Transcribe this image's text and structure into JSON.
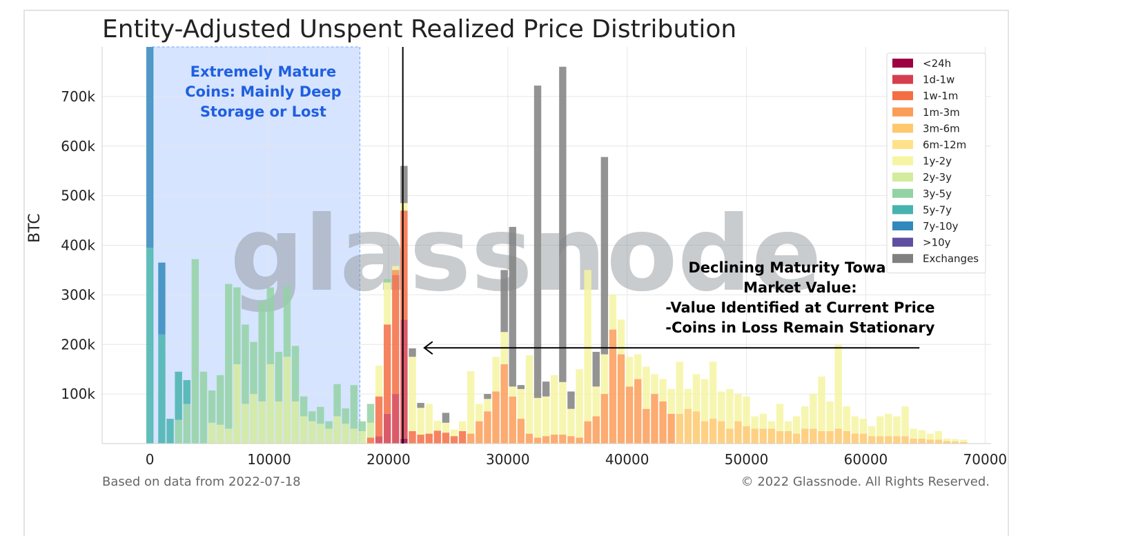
{
  "chart_data": {
    "type": "bar",
    "title": "Entity-Adjusted Unspent Realized Price Distribution",
    "xlabel": "",
    "ylabel": "BTC",
    "xlim": [
      -4000,
      70500
    ],
    "ylim": [
      0,
      800000
    ],
    "xticks": [
      0,
      10000,
      20000,
      30000,
      40000,
      50000,
      60000,
      70000
    ],
    "xtick_labels": [
      "0",
      "10000",
      "20000",
      "30000",
      "40000",
      "50000",
      "60000",
      "70000"
    ],
    "yticks": [
      100000,
      200000,
      300000,
      400000,
      500000,
      600000,
      700000
    ],
    "ytick_labels": [
      "100k",
      "200k",
      "300k",
      "400k",
      "500k",
      "600k",
      "700k"
    ],
    "grid": true,
    "legend_position": "top-right",
    "current_price": 21200,
    "bin_width": 700,
    "series": [
      {
        "name": "<24h",
        "color": "#9e0142"
      },
      {
        "name": "1d-1w",
        "color": "#d53e4f"
      },
      {
        "name": "1w-1m",
        "color": "#f46d43"
      },
      {
        "name": "1m-3m",
        "color": "#fb9c58"
      },
      {
        "name": "3m-6m",
        "color": "#fdc86e"
      },
      {
        "name": "6m-12m",
        "color": "#fee18a"
      },
      {
        "name": "1y-2y",
        "color": "#f5f5a2"
      },
      {
        "name": "2y-3y",
        "color": "#d2eb9c"
      },
      {
        "name": "3y-5y",
        "color": "#93d2a4"
      },
      {
        "name": "5y-7y",
        "color": "#46b3ae"
      },
      {
        "name": "7y-10y",
        "color": "#3288bd"
      },
      {
        "name": ">10y",
        "color": "#5e4fa2"
      },
      {
        "name": "Exchanges",
        "color": "#808080"
      }
    ],
    "bins": [
      {
        "x": 0,
        "stack": {
          "5y-7y": 395000,
          "7y-10y": 405000
        }
      },
      {
        "x": 1000,
        "stack": {
          "5y-7y": 220000,
          "7y-10y": 145000
        }
      },
      {
        "x": 1700,
        "stack": {
          "5y-7y": 50000
        }
      },
      {
        "x": 2400,
        "stack": {
          "3y-5y": 48000,
          "5y-7y": 97000
        }
      },
      {
        "x": 3100,
        "stack": {
          "3y-5y": 80000,
          "5y-7y": 48000
        }
      },
      {
        "x": 3800,
        "stack": {
          "3y-5y": 372000
        }
      },
      {
        "x": 4500,
        "stack": {
          "3y-5y": 145000
        }
      },
      {
        "x": 5200,
        "stack": {
          "2y-3y": 42000,
          "3y-5y": 65000
        }
      },
      {
        "x": 5900,
        "stack": {
          "2y-3y": 38000,
          "3y-5y": 100000
        }
      },
      {
        "x": 6600,
        "stack": {
          "2y-3y": 30000,
          "3y-5y": 292000
        }
      },
      {
        "x": 7300,
        "stack": {
          "2y-3y": 160000,
          "3y-5y": 155000
        }
      },
      {
        "x": 8000,
        "stack": {
          "2y-3y": 80000,
          "3y-5y": 160000
        }
      },
      {
        "x": 8700,
        "stack": {
          "2y-3y": 100000,
          "3y-5y": 105000
        }
      },
      {
        "x": 9400,
        "stack": {
          "2y-3y": 85000,
          "3y-5y": 202000
        }
      },
      {
        "x": 10100,
        "stack": {
          "2y-3y": 160000,
          "3y-5y": 155000
        }
      },
      {
        "x": 10800,
        "stack": {
          "2y-3y": 85000,
          "3y-5y": 100000
        }
      },
      {
        "x": 11500,
        "stack": {
          "2y-3y": 175000,
          "3y-5y": 142000
        }
      },
      {
        "x": 12200,
        "stack": {
          "2y-3y": 85000,
          "3y-5y": 112000
        }
      },
      {
        "x": 12900,
        "stack": {
          "2y-3y": 55000,
          "3y-5y": 40000
        }
      },
      {
        "x": 13600,
        "stack": {
          "2y-3y": 45000,
          "3y-5y": 20000
        }
      },
      {
        "x": 14300,
        "stack": {
          "2y-3y": 40000,
          "3y-5y": 34000
        }
      },
      {
        "x": 15000,
        "stack": {
          "2y-3y": 30000,
          "3y-5y": 15000
        }
      },
      {
        "x": 15700,
        "stack": {
          "2y-3y": 55000,
          "3y-5y": 65000
        }
      },
      {
        "x": 16400,
        "stack": {
          "2y-3y": 40000,
          "3y-5y": 31000
        }
      },
      {
        "x": 17100,
        "stack": {
          "2y-3y": 30000,
          "3y-5y": 88000
        }
      },
      {
        "x": 17800,
        "stack": {
          "2y-3y": 25000,
          "3y-5y": 20000
        }
      },
      {
        "x": 18500,
        "stack": {
          "1w-1m": 12000,
          "2y-3y": 30000,
          "3y-5y": 38000
        }
      },
      {
        "x": 19200,
        "stack": {
          "1d-1w": 15000,
          "1w-1m": 80000,
          "1y-2y": 62000
        }
      },
      {
        "x": 19900,
        "stack": {
          "1d-1w": 60000,
          "1w-1m": 180000,
          "1y-2y": 85000,
          "3y-5y": 7000
        }
      },
      {
        "x": 20600,
        "stack": {
          "1d-1w": 100000,
          "1w-1m": 240000,
          "1m-3m": 10000,
          "1y-2y": 8000
        }
      },
      {
        "x": 21300,
        "stack": {
          "<24h": 10000,
          "1d-1w": 240000,
          "1w-1m": 220000,
          "1y-2y": 15000,
          "Exchanges": 75000
        }
      },
      {
        "x": 22000,
        "stack": {
          "1w-1m": 25000,
          "1y-2y": 150000,
          "Exchanges": 17000
        }
      },
      {
        "x": 22700,
        "stack": {
          "1w-1m": 18000,
          "1y-2y": 54000,
          "Exchanges": 10000
        }
      },
      {
        "x": 23400,
        "stack": {
          "1w-1m": 20000,
          "1y-2y": 60000
        }
      },
      {
        "x": 24100,
        "stack": {
          "1w-1m": 26000,
          "1y-2y": 20000
        }
      },
      {
        "x": 24800,
        "stack": {
          "1w-1m": 22000,
          "1y-2y": 20000,
          "Exchanges": 20000
        }
      },
      {
        "x": 25500,
        "stack": {
          "1w-1m": 15000,
          "1y-2y": 13000
        }
      },
      {
        "x": 26200,
        "stack": {
          "1w-1m": 25000,
          "1y-2y": 20000
        }
      },
      {
        "x": 26900,
        "stack": {
          "1m-3m": 20000,
          "1y-2y": 126000
        }
      },
      {
        "x": 27600,
        "stack": {
          "1m-3m": 45000,
          "1y-2y": 35000
        }
      },
      {
        "x": 28300,
        "stack": {
          "1m-3m": 65000,
          "1y-2y": 25000,
          "Exchanges": 10000
        }
      },
      {
        "x": 29000,
        "stack": {
          "1m-3m": 105000,
          "1y-2y": 70000
        }
      },
      {
        "x": 29700,
        "stack": {
          "1m-3m": 160000,
          "1y-2y": 65000,
          "Exchanges": 125000
        }
      },
      {
        "x": 30400,
        "stack": {
          "1m-3m": 95000,
          "1y-2y": 20000,
          "Exchanges": 322000
        }
      },
      {
        "x": 31100,
        "stack": {
          "1m-3m": 50000,
          "1y-2y": 60000,
          "Exchanges": 8000
        }
      },
      {
        "x": 31800,
        "stack": {
          "1m-3m": 20000,
          "1y-2y": 158000
        }
      },
      {
        "x": 32500,
        "stack": {
          "1m-3m": 12000,
          "1y-2y": 80000,
          "Exchanges": 630000
        }
      },
      {
        "x": 33200,
        "stack": {
          "1m-3m": 15000,
          "1y-2y": 80000,
          "Exchanges": 30000
        }
      },
      {
        "x": 33900,
        "stack": {
          "1m-3m": 18000,
          "1y-2y": 120000
        }
      },
      {
        "x": 34600,
        "stack": {
          "1m-3m": 18000,
          "1y-2y": 106000,
          "Exchanges": 636000
        }
      },
      {
        "x": 35300,
        "stack": {
          "1m-3m": 15000,
          "1y-2y": 55000,
          "Exchanges": 35000
        }
      },
      {
        "x": 36000,
        "stack": {
          "1m-3m": 12000,
          "1y-2y": 138000
        }
      },
      {
        "x": 36700,
        "stack": {
          "1m-3m": 45000,
          "1y-2y": 305000
        }
      },
      {
        "x": 37400,
        "stack": {
          "1m-3m": 55000,
          "1y-2y": 60000,
          "Exchanges": 70000
        }
      },
      {
        "x": 38100,
        "stack": {
          "1m-3m": 100000,
          "1y-2y": 80000,
          "Exchanges": 398000
        }
      },
      {
        "x": 38800,
        "stack": {
          "1m-3m": 230000,
          "1y-2y": 70000
        }
      },
      {
        "x": 39500,
        "stack": {
          "1m-3m": 180000,
          "1y-2y": 70000
        }
      },
      {
        "x": 40200,
        "stack": {
          "1m-3m": 115000,
          "1y-2y": 60000
        }
      },
      {
        "x": 40900,
        "stack": {
          "1m-3m": 130000,
          "1y-2y": 50000
        }
      },
      {
        "x": 41600,
        "stack": {
          "1m-3m": 70000,
          "1y-2y": 85000
        }
      },
      {
        "x": 42300,
        "stack": {
          "1m-3m": 100000,
          "1y-2y": 40000
        }
      },
      {
        "x": 43000,
        "stack": {
          "1m-3m": 85000,
          "1y-2y": 45000
        }
      },
      {
        "x": 43700,
        "stack": {
          "1m-3m": 60000,
          "1y-2y": 50000
        }
      },
      {
        "x": 44400,
        "stack": {
          "3m-6m": 60000,
          "1y-2y": 105000
        }
      },
      {
        "x": 45100,
        "stack": {
          "3m-6m": 70000,
          "1y-2y": 40000
        }
      },
      {
        "x": 45800,
        "stack": {
          "3m-6m": 65000,
          "1y-2y": 75000
        }
      },
      {
        "x": 46500,
        "stack": {
          "3m-6m": 45000,
          "1y-2y": 85000
        }
      },
      {
        "x": 47200,
        "stack": {
          "3m-6m": 50000,
          "1y-2y": 115000
        }
      },
      {
        "x": 47900,
        "stack": {
          "3m-6m": 45000,
          "1y-2y": 60000
        }
      },
      {
        "x": 48600,
        "stack": {
          "3m-6m": 30000,
          "1y-2y": 80000
        }
      },
      {
        "x": 49300,
        "stack": {
          "3m-6m": 45000,
          "1y-2y": 55000
        }
      },
      {
        "x": 50000,
        "stack": {
          "3m-6m": 35000,
          "1y-2y": 60000
        }
      },
      {
        "x": 50700,
        "stack": {
          "3m-6m": 30000,
          "1y-2y": 25000
        }
      },
      {
        "x": 51400,
        "stack": {
          "3m-6m": 30000,
          "1y-2y": 30000
        }
      },
      {
        "x": 52100,
        "stack": {
          "3m-6m": 30000,
          "1y-2y": 15000
        }
      },
      {
        "x": 52800,
        "stack": {
          "3m-6m": 25000,
          "1y-2y": 55000
        }
      },
      {
        "x": 53500,
        "stack": {
          "3m-6m": 25000,
          "1y-2y": 20000
        }
      },
      {
        "x": 54200,
        "stack": {
          "3m-6m": 20000,
          "1y-2y": 35000
        }
      },
      {
        "x": 54900,
        "stack": {
          "3m-6m": 30000,
          "1y-2y": 45000
        }
      },
      {
        "x": 55600,
        "stack": {
          "3m-6m": 30000,
          "1y-2y": 70000
        }
      },
      {
        "x": 56300,
        "stack": {
          "3m-6m": 25000,
          "1y-2y": 110000
        }
      },
      {
        "x": 57000,
        "stack": {
          "3m-6m": 25000,
          "1y-2y": 60000
        }
      },
      {
        "x": 57700,
        "stack": {
          "3m-6m": 30000,
          "1y-2y": 170000
        }
      },
      {
        "x": 58400,
        "stack": {
          "3m-6m": 25000,
          "1y-2y": 50000
        }
      },
      {
        "x": 59100,
        "stack": {
          "3m-6m": 20000,
          "1y-2y": 35000
        }
      },
      {
        "x": 59800,
        "stack": {
          "3m-6m": 20000,
          "1y-2y": 30000
        }
      },
      {
        "x": 60500,
        "stack": {
          "3m-6m": 15000,
          "1y-2y": 20000
        }
      },
      {
        "x": 61200,
        "stack": {
          "3m-6m": 15000,
          "1y-2y": 40000
        }
      },
      {
        "x": 61900,
        "stack": {
          "3m-6m": 15000,
          "1y-2y": 45000
        }
      },
      {
        "x": 62600,
        "stack": {
          "3m-6m": 15000,
          "1y-2y": 40000
        }
      },
      {
        "x": 63300,
        "stack": {
          "3m-6m": 15000,
          "1y-2y": 60000
        }
      },
      {
        "x": 64000,
        "stack": {
          "3m-6m": 10000,
          "1y-2y": 20000
        }
      },
      {
        "x": 64700,
        "stack": {
          "3m-6m": 10000,
          "1y-2y": 17000
        }
      },
      {
        "x": 65400,
        "stack": {
          "3m-6m": 8000,
          "1y-2y": 12000
        }
      },
      {
        "x": 66100,
        "stack": {
          "3m-6m": 8000,
          "1y-2y": 17000
        }
      },
      {
        "x": 66800,
        "stack": {
          "3m-6m": 5000,
          "1y-2y": 5000
        }
      },
      {
        "x": 67500,
        "stack": {
          "3m-6m": 4000,
          "1y-2y": 5000
        }
      },
      {
        "x": 68200,
        "stack": {
          "3m-6m": 3000,
          "1y-2y": 5000
        }
      }
    ],
    "shaded_region": {
      "x_from": 200,
      "x_to": 17600,
      "color": "#d6e4ff"
    },
    "annotations": [
      {
        "id": "mature",
        "lines": [
          "Extremely Mature",
          "Coins: Mainly Deep",
          "Storage or Lost"
        ],
        "color": "#1f5fe0",
        "anchor_x": 9500,
        "anchor_y": 740000
      },
      {
        "id": "declining",
        "lines": [
          "Declining Maturity Towards",
          "Market Value:",
          "-Value Identified at Current Price",
          "-Coins in Loss Remain Stationary"
        ],
        "color": "#000000",
        "anchor_x": 54500,
        "anchor_y": 345000
      }
    ],
    "arrow": {
      "from_x": 64500,
      "to_x": 23000,
      "y": 193000
    }
  },
  "text": {
    "title": "Entity-Adjusted Unspent Realized Price Distribution",
    "ylabel": "BTC",
    "watermark": "glassnode",
    "footer_left": "Based on data from 2022-07-18",
    "footer_right": "© 2022 Glassnode. All Rights Reserved."
  }
}
